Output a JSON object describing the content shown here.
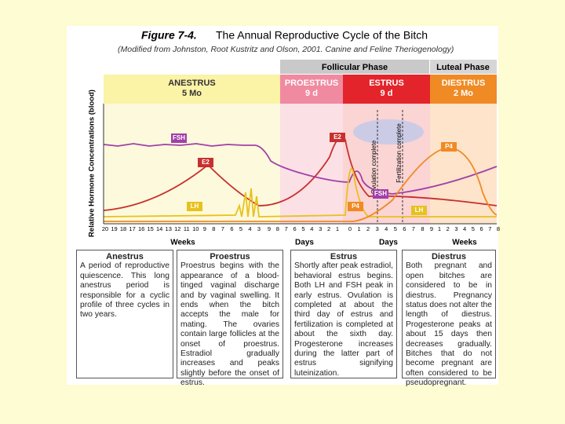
{
  "figure": {
    "label": "Figure 7-4.",
    "title": "The Annual Reproductive Cycle of the Bitch",
    "subtitle": "(Modified from Johnston, Root Kustritz and Olson, 2001. Canine and Feline Theriogenology)"
  },
  "phases": [
    "Follicular Phase",
    "Luteal Phase"
  ],
  "stages": [
    {
      "name": "ANESTRUS",
      "duration": "5 Mo"
    },
    {
      "name": "PROESTRUS",
      "duration": "9 d"
    },
    {
      "name": "ESTRUS",
      "duration": "9 d"
    },
    {
      "name": "DIESTRUS",
      "duration": "2 Mo"
    }
  ],
  "y_axis_label": "Relative Hormone Concentrations (blood)",
  "hormone_labels": [
    "FSH",
    "E2",
    "LH",
    "E2",
    "FSH",
    "P4",
    "LH",
    "P4"
  ],
  "annotations": [
    "Ovulation complete",
    "Fertilization complete"
  ],
  "x_axis": [
    {
      "unit": "Weeks",
      "ticks": [
        20,
        19,
        18,
        17,
        16,
        15,
        14,
        13,
        12,
        11,
        10,
        9,
        8,
        7,
        6,
        5,
        4,
        3
      ]
    },
    {
      "unit": "Days",
      "ticks": [
        9,
        8,
        7,
        6,
        5,
        4,
        3,
        2,
        1
      ]
    },
    {
      "unit": "Days",
      "ticks": [
        0,
        1,
        2,
        3,
        4,
        5,
        6,
        7,
        8,
        9
      ]
    },
    {
      "unit": "Weeks",
      "ticks": [
        1,
        2,
        3,
        4,
        5,
        6,
        7,
        8
      ]
    }
  ],
  "descriptions": [
    {
      "heading": "Anestrus",
      "text": "A period of reproductive quiescence. This long anestrus period is responsible for a cyclic profile of three cycles in two years."
    },
    {
      "heading": "Proestrus",
      "text": "Proestrus begins with the appearance of a blood-tinged vaginal discharge and by vaginal swelling. It ends when the bitch accepts the male for mating. The ovaries contain large follicles at the onset of proestrus. Estradiol gradually increases and peaks slightly before the onset of estrus."
    },
    {
      "heading": "Estrus",
      "text": "Shortly after peak estradiol, behavioral estrus begins. Both LH and FSH peak in early estrus. Ovulation is completed at about the third day of estrus and fertilization is completed at about the sixth day. Progesterone increases during the latter part of estrus signifying luteinization."
    },
    {
      "heading": "Diestrus",
      "text": "Both pregnant and open bitches are considered to be in diestrus. Pregnancy status does not alter the length of diestrus. Progesterone peaks at about 15 days then decreases gradually. Bitches that do not become pregnant are often considered to be pseudopregnant."
    }
  ]
}
